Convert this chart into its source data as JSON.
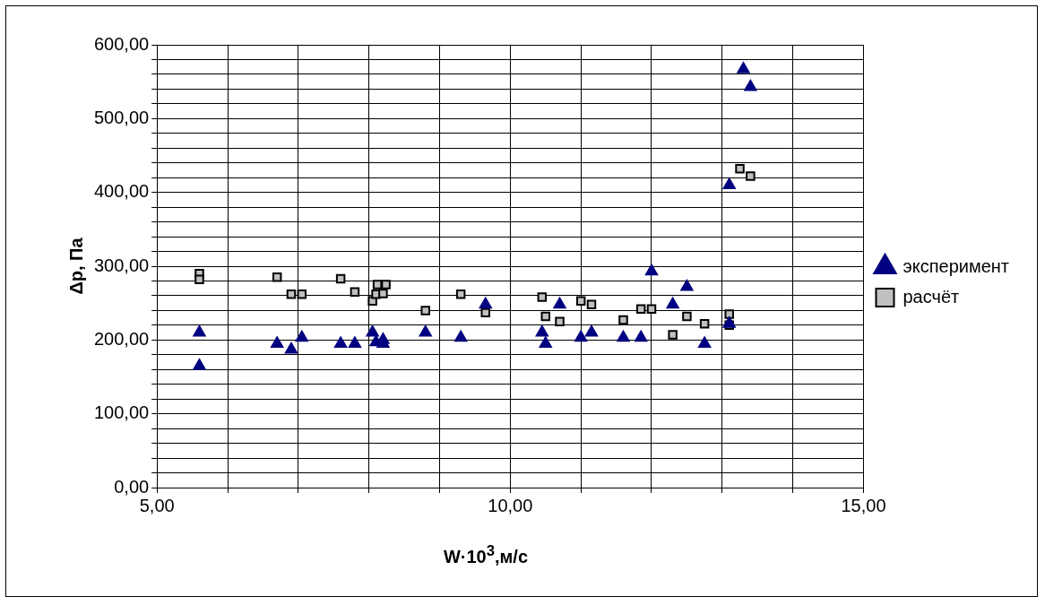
{
  "chart_data": {
    "type": "scatter",
    "xlabel": "W·10$^{3}$,м/с",
    "ylabel": "Δp, Па",
    "xlim": [
      5,
      15
    ],
    "xticks": [
      {
        "value": 5,
        "label": "5,00"
      },
      {
        "value": 6,
        "label": null
      },
      {
        "value": 7,
        "label": null
      },
      {
        "value": 8,
        "label": null
      },
      {
        "value": 9,
        "label": null
      },
      {
        "value": 10,
        "label": "10,00"
      },
      {
        "value": 11,
        "label": null
      },
      {
        "value": 12,
        "label": null
      },
      {
        "value": 13,
        "label": null
      },
      {
        "value": 14,
        "label": null
      },
      {
        "value": 15,
        "label": "15,00"
      }
    ],
    "ylim": [
      0,
      600
    ],
    "yticks": [
      {
        "value": 0,
        "label": "0,00"
      },
      {
        "value": 20,
        "label": null
      },
      {
        "value": 40,
        "label": null
      },
      {
        "value": 60,
        "label": null
      },
      {
        "value": 80,
        "label": null
      },
      {
        "value": 100,
        "label": "100,00"
      },
      {
        "value": 120,
        "label": null
      },
      {
        "value": 140,
        "label": null
      },
      {
        "value": 160,
        "label": null
      },
      {
        "value": 180,
        "label": null
      },
      {
        "value": 200,
        "label": "200,00"
      },
      {
        "value": 220,
        "label": null
      },
      {
        "value": 240,
        "label": null
      },
      {
        "value": 260,
        "label": null
      },
      {
        "value": 280,
        "label": null
      },
      {
        "value": 300,
        "label": "300,00"
      },
      {
        "value": 320,
        "label": null
      },
      {
        "value": 340,
        "label": null
      },
      {
        "value": 360,
        "label": null
      },
      {
        "value": 380,
        "label": null
      },
      {
        "value": 400,
        "label": "400,00"
      },
      {
        "value": 420,
        "label": null
      },
      {
        "value": 440,
        "label": null
      },
      {
        "value": 460,
        "label": null
      },
      {
        "value": 480,
        "label": null
      },
      {
        "value": 500,
        "label": "500,00"
      },
      {
        "value": 520,
        "label": null
      },
      {
        "value": 540,
        "label": null
      },
      {
        "value": 560,
        "label": null
      },
      {
        "value": 580,
        "label": null
      },
      {
        "value": 600,
        "label": "600,00"
      }
    ],
    "grid": true,
    "legend": "right",
    "series": [
      {
        "name": "эксперимент",
        "color": "#000080",
        "marker": "triangle",
        "x": [
          5.6,
          5.6,
          6.7,
          6.9,
          7.05,
          7.6,
          7.8,
          8.05,
          8.1,
          8.2,
          8.2,
          8.8,
          9.3,
          9.65,
          10.45,
          10.5,
          10.7,
          11.0,
          11.15,
          11.6,
          11.85,
          12.0,
          12.3,
          12.5,
          12.75,
          13.1,
          13.1,
          13.3,
          13.4
        ],
        "values": [
          210,
          165,
          195,
          187,
          203,
          195,
          195,
          210,
          197,
          200,
          195,
          210,
          203,
          248,
          210,
          195,
          248,
          203,
          210,
          203,
          203,
          293,
          248,
          272,
          195,
          410,
          222,
          567,
          543
        ]
      },
      {
        "name": "расчёт",
        "color": "#c0c0c0",
        "marker": "square",
        "x": [
          5.6,
          5.6,
          6.7,
          6.9,
          7.05,
          7.6,
          7.8,
          8.05,
          8.1,
          8.12,
          8.24,
          8.2,
          8.8,
          9.3,
          9.65,
          10.45,
          10.5,
          10.7,
          11.0,
          11.15,
          11.6,
          11.85,
          12.0,
          12.3,
          12.5,
          12.75,
          13.1,
          13.1,
          13.25,
          13.4
        ],
        "values": [
          290,
          282,
          285,
          262,
          262,
          283,
          265,
          253,
          262,
          275,
          275,
          263,
          240,
          262,
          237,
          258,
          232,
          225,
          253,
          248,
          227,
          242,
          242,
          207,
          232,
          222,
          235,
          220,
          432,
          422
        ]
      }
    ]
  }
}
